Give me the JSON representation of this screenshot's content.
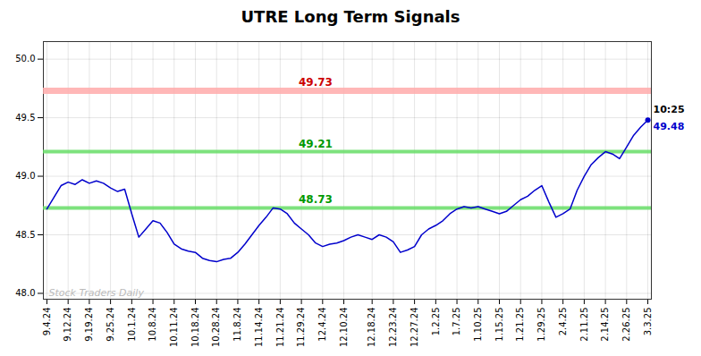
{
  "chart_data": {
    "type": "line",
    "title": "UTRE Long Term Signals",
    "color": "#0000cc",
    "categories": [
      "9.4.24",
      null,
      null,
      "9.12.24",
      null,
      null,
      "9.19.24",
      null,
      null,
      "9.25.24",
      null,
      null,
      "10.1.24",
      null,
      null,
      "10.8.24",
      null,
      null,
      "10.11.24",
      null,
      null,
      "10.18.24",
      null,
      null,
      "10.28.24",
      null,
      null,
      "11.8.24",
      null,
      null,
      "11.14.24",
      null,
      null,
      "11.21.24",
      null,
      null,
      "11.29.24",
      null,
      null,
      "12.4.24",
      null,
      null,
      "12.10.24",
      null,
      null,
      null,
      "12.18.24",
      null,
      null,
      "12.23.24",
      null,
      null,
      "12.27.24",
      null,
      null,
      "1.2.25",
      null,
      null,
      "1.7.25",
      null,
      null,
      "1.10.25",
      null,
      null,
      "1.15.25",
      null,
      null,
      "1.21.25",
      null,
      null,
      "1.29.25",
      null,
      null,
      "2.4.25",
      null,
      null,
      "2.11.25",
      null,
      null,
      "2.14.25",
      null,
      null,
      "2.26.25",
      null,
      null,
      "3.3.25"
    ],
    "values": [
      48.72,
      48.82,
      48.92,
      48.95,
      48.93,
      48.97,
      48.94,
      48.96,
      48.94,
      48.9,
      48.87,
      48.89,
      48.68,
      48.48,
      48.55,
      48.62,
      48.6,
      48.52,
      48.42,
      48.38,
      48.36,
      48.35,
      48.3,
      48.28,
      48.27,
      48.29,
      48.3,
      48.35,
      48.42,
      48.5,
      48.58,
      48.65,
      48.73,
      48.72,
      48.68,
      48.6,
      48.55,
      48.5,
      48.43,
      48.4,
      48.42,
      48.43,
      48.45,
      48.48,
      48.5,
      48.48,
      48.46,
      48.5,
      48.48,
      48.44,
      48.35,
      48.37,
      48.4,
      48.5,
      48.55,
      48.58,
      48.62,
      48.68,
      48.72,
      48.74,
      48.73,
      48.74,
      48.72,
      48.7,
      48.68,
      48.7,
      48.75,
      48.8,
      48.83,
      48.88,
      48.92,
      48.78,
      48.65,
      48.68,
      48.72,
      48.88,
      49.0,
      49.1,
      49.16,
      49.21,
      49.19,
      49.15,
      49.25,
      49.35,
      49.42,
      49.48
    ],
    "ylim": [
      47.95,
      50.15
    ],
    "yticks": [
      {
        "value": 48.0,
        "label": "48.0"
      },
      48.5,
      {
        "value": 49.0,
        "label": "49.0"
      },
      49.5,
      {
        "value": 50.0,
        "label": "50.0"
      }
    ],
    "grid": true,
    "reference_lines": [
      {
        "y": 49.73,
        "label": "49.73",
        "color": "#ffaaaa",
        "label_color": "#cc0000"
      },
      {
        "y": 49.21,
        "label": "49.21",
        "color": "#66dd66",
        "label_color": "#009900"
      },
      {
        "y": 48.73,
        "label": "48.73",
        "color": "#66dd66",
        "label_color": "#009900"
      }
    ],
    "annotations": [
      {
        "text": "10:25",
        "color": "#000000"
      },
      {
        "text": "49.48",
        "color": "#0000cc"
      }
    ],
    "watermark": {
      "text": "Stock Traders Daily",
      "color": "#bbbbbb"
    }
  }
}
